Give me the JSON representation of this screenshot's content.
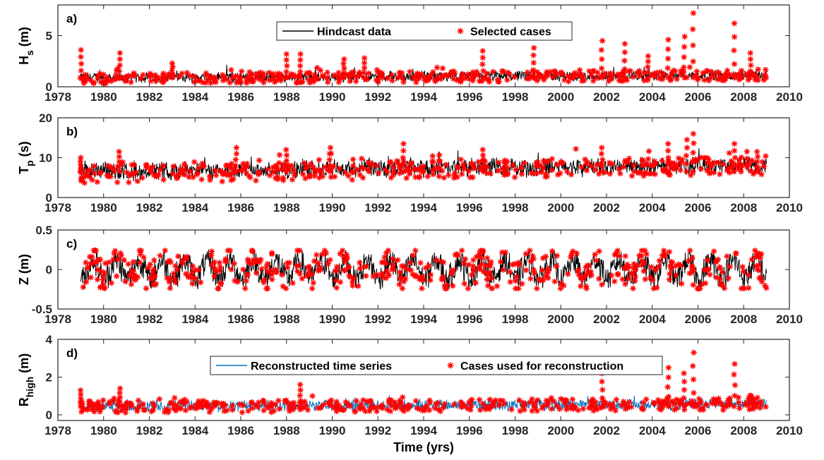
{
  "chart_data": [
    {
      "type": "line",
      "panel_label": "a)",
      "ylabel": "H",
      "ylabel_sub": "s",
      "ylabel_unit": "(m)",
      "xlim": [
        1978,
        2010
      ],
      "ylim": [
        0,
        8
      ],
      "xticks": [
        1978,
        1980,
        1982,
        1984,
        1986,
        1988,
        1990,
        1992,
        1994,
        1996,
        1998,
        2000,
        2002,
        2004,
        2006,
        2008,
        2010
      ],
      "yticks": [
        0,
        5
      ],
      "legend": [
        "Hindcast data",
        "Selected cases"
      ],
      "legend_position": "top-center",
      "series": [
        {
          "name": "Hindcast data",
          "style": "black line",
          "color": "#000000",
          "base": 0.9,
          "amplitude": 0.5,
          "x_range": [
            1979,
            2009
          ]
        },
        {
          "name": "Selected cases",
          "style": "red asterisk",
          "color": "#ff0000",
          "peaks": [
            [
              1979.0,
              3.6
            ],
            [
              1980.7,
              3.3
            ],
            [
              1983.0,
              2.3
            ],
            [
              1988.0,
              3.2
            ],
            [
              1988.6,
              3.2
            ],
            [
              1990.5,
              2.7
            ],
            [
              1991.4,
              2.8
            ],
            [
              1996.6,
              3.5
            ],
            [
              1998.8,
              3.8
            ],
            [
              2001.8,
              4.5
            ],
            [
              2002.8,
              4.2
            ],
            [
              2003.8,
              3.0
            ],
            [
              2004.7,
              4.6
            ],
            [
              2005.4,
              4.9
            ],
            [
              2005.8,
              7.2
            ],
            [
              2007.6,
              6.2
            ],
            [
              2008.3,
              3.3
            ]
          ]
        }
      ]
    },
    {
      "type": "line",
      "panel_label": "b)",
      "ylabel": "T",
      "ylabel_sub": "p",
      "ylabel_unit": "(s)",
      "xlim": [
        1978,
        2010
      ],
      "ylim": [
        0,
        20
      ],
      "xticks": [
        1978,
        1980,
        1982,
        1984,
        1986,
        1988,
        1990,
        1992,
        1994,
        1996,
        1998,
        2000,
        2002,
        2004,
        2006,
        2008,
        2010
      ],
      "yticks": [
        0,
        10,
        20
      ],
      "series": [
        {
          "name": "Hindcast data",
          "style": "black line",
          "color": "#000000",
          "base": 6.5,
          "amplitude": 2.2,
          "x_range": [
            1979,
            2009
          ]
        },
        {
          "name": "Selected cases",
          "style": "red asterisk",
          "color": "#ff0000",
          "peaks": [
            [
              1979.0,
              10.0
            ],
            [
              1980.7,
              11.5
            ],
            [
              1985.8,
              12.5
            ],
            [
              1988.0,
              12.0
            ],
            [
              1989.9,
              12.5
            ],
            [
              1993.1,
              13.5
            ],
            [
              1996.6,
              12.0
            ],
            [
              2001.8,
              12.5
            ],
            [
              2004.7,
              13.5
            ],
            [
              2005.5,
              14.5
            ],
            [
              2005.8,
              16.0
            ],
            [
              2007.6,
              13.5
            ],
            [
              2008.6,
              11.5
            ]
          ]
        }
      ]
    },
    {
      "type": "line",
      "panel_label": "c)",
      "ylabel": "Z",
      "ylabel_sub": "",
      "ylabel_unit": "(m)",
      "xlim": [
        1978,
        2010
      ],
      "ylim": [
        -0.5,
        0.5
      ],
      "xticks": [
        1978,
        1980,
        1982,
        1984,
        1986,
        1988,
        1990,
        1992,
        1994,
        1996,
        1998,
        2000,
        2002,
        2004,
        2006,
        2008,
        2010
      ],
      "yticks": [
        -0.5,
        0,
        0.5
      ],
      "series": [
        {
          "name": "Hindcast data",
          "style": "black line",
          "color": "#000000",
          "base": 0.0,
          "amplitude": 0.21,
          "x_range": [
            1979,
            2009
          ]
        },
        {
          "name": "Selected cases",
          "style": "red asterisk",
          "color": "#ff0000",
          "peaks": []
        }
      ]
    },
    {
      "type": "line",
      "panel_label": "d)",
      "ylabel": "R",
      "ylabel_sub": "high",
      "ylabel_unit": "(m)",
      "xlabel": "Time (yrs)",
      "xlim": [
        1978,
        2010
      ],
      "ylim": [
        -0.3,
        4
      ],
      "xticks": [
        1978,
        1980,
        1982,
        1984,
        1986,
        1988,
        1990,
        1992,
        1994,
        1996,
        1998,
        2000,
        2002,
        2004,
        2006,
        2008,
        2010
      ],
      "yticks": [
        0,
        2,
        4
      ],
      "legend": [
        "Reconstructed time series",
        "Cases used for reconstruction"
      ],
      "legend_position": "top-center",
      "series": [
        {
          "name": "Reconstructed time series",
          "style": "blue line",
          "color": "#0072bd",
          "base": 0.45,
          "amplitude": 0.3,
          "x_range": [
            1979,
            2009
          ]
        },
        {
          "name": "Cases used for reconstruction",
          "style": "red asterisk",
          "color": "#ff0000",
          "peaks": [
            [
              1979.0,
              1.3
            ],
            [
              1980.7,
              1.4
            ],
            [
              1988.6,
              1.6
            ],
            [
              2001.8,
              2.2
            ],
            [
              2004.7,
              2.5
            ],
            [
              2005.4,
              2.2
            ],
            [
              2005.8,
              3.3
            ],
            [
              2007.6,
              2.7
            ]
          ]
        }
      ]
    }
  ]
}
